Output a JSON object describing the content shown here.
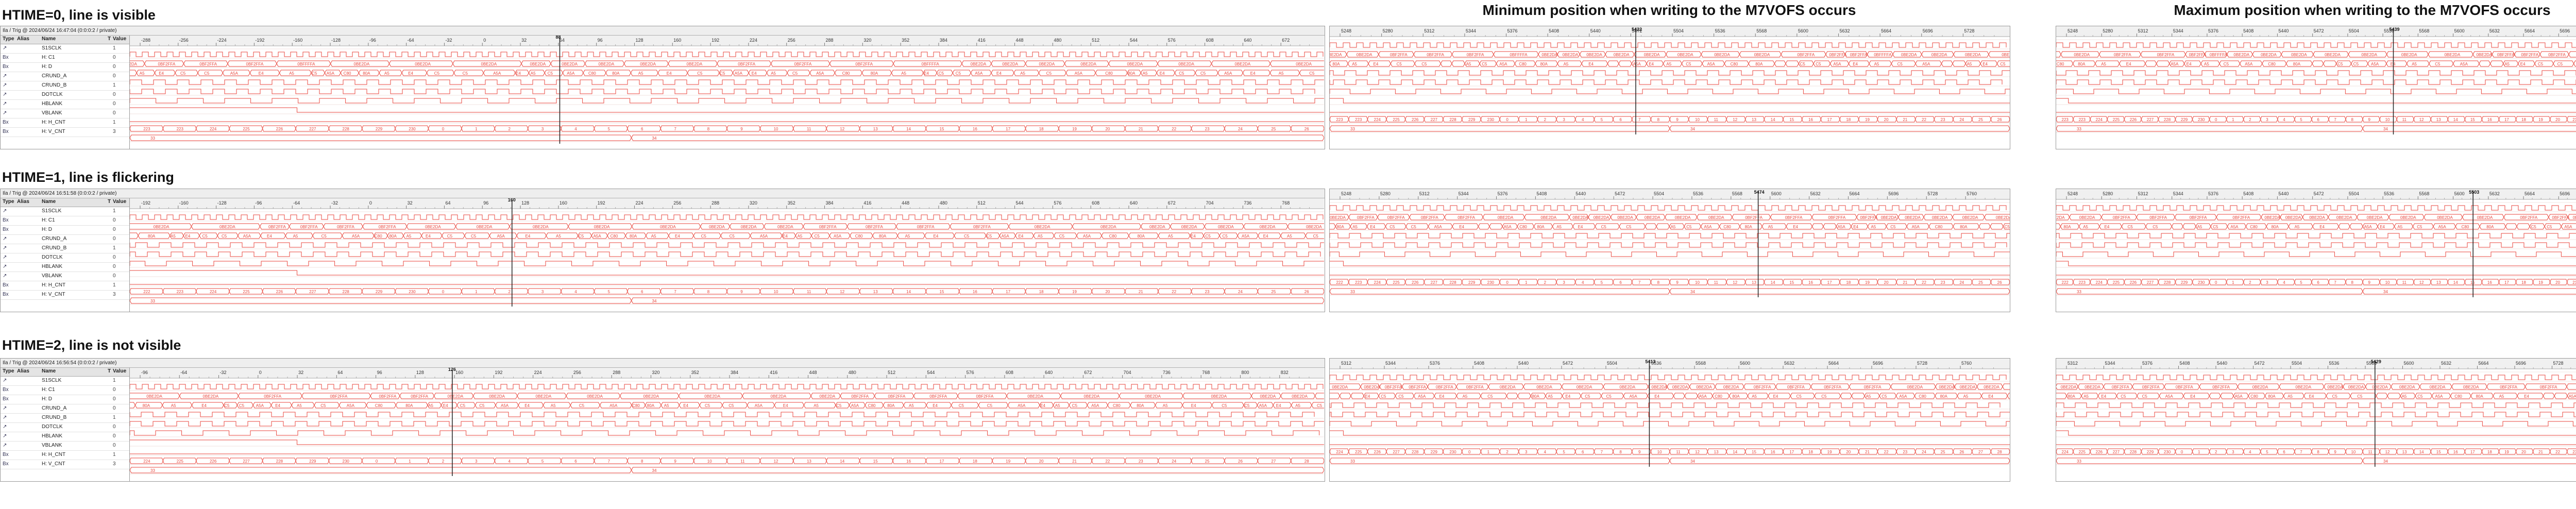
{
  "headings": {
    "row1": "HTIME=0, line is visible",
    "row2": "HTIME=1, line is flickering",
    "row3": "HTIME=2, line is not visible"
  },
  "column_headings": {
    "min": "Minimum position when writing to the M7VOFS occurs",
    "max": "Maximum position when writing to the M7VOFS occurs"
  },
  "trigger_bars": [
    "Ila / Trig @ 2024/06/24 16:47:04 (0:0:0:2 / private)",
    "Ila / Trig @ 2024/06/24 16:51:58 (0:0:0:2 / private)",
    "Ila / Trig @ 2024/06/24 16:56:54 (0:0:0:2 / private)"
  ],
  "list_header": {
    "type": "Type",
    "alias": "Alias",
    "name": "Name",
    "trig": "T",
    "value": "Value"
  },
  "signals": [
    {
      "type": "↗",
      "alias": "",
      "name": "S1SCLK",
      "value": "1"
    },
    {
      "type": "Bx",
      "alias": "",
      "name": "H: C1",
      "value": "0"
    },
    {
      "type": "Bx",
      "alias": "",
      "name": "H: D",
      "value": "0"
    },
    {
      "type": "↗",
      "alias": "",
      "name": "CRUND_A",
      "value": "0"
    },
    {
      "type": "↗",
      "alias": "",
      "name": "CRUND_B",
      "value": "1"
    },
    {
      "type": "↗",
      "alias": "",
      "name": "DOTCLK",
      "value": "0"
    },
    {
      "type": "↗",
      "alias": "",
      "name": "HBLANK",
      "value": "0"
    },
    {
      "type": "↗",
      "alias": "",
      "name": "VBLANK",
      "value": "0"
    },
    {
      "type": "Bx",
      "alias": "",
      "name": "H: H_CNT",
      "value": "1"
    },
    {
      "type": "Bx",
      "alias": "",
      "name": "H: V_CNT",
      "value": "3"
    }
  ],
  "rows": [
    {
      "cursor_label": "88",
      "ruler_main": [
        "-288",
        "-256",
        "-224",
        "-192",
        "-160",
        "-128",
        "-96",
        "-64",
        "-32",
        "0",
        "32",
        "64",
        "96",
        "128",
        "160",
        "192",
        "224",
        "256",
        "288",
        "320",
        "352",
        "384",
        "416",
        "448",
        "480",
        "512",
        "544",
        "576",
        "608",
        "640",
        "672"
      ],
      "ruler_min": [
        "5248",
        "5280",
        "5312",
        "5344",
        "5376",
        "5408",
        "5440",
        "5472",
        "5504",
        "5536",
        "5568",
        "5600",
        "5632",
        "5664",
        "5696",
        "5728"
      ],
      "ruler_max": [
        "5248",
        "5280",
        "5312",
        "5344",
        "5376",
        "5408",
        "5440",
        "5472",
        "5504",
        "5536",
        "5568",
        "5600",
        "5632",
        "5664",
        "5696",
        "5728",
        "5760"
      ],
      "cursor_min": "5422",
      "cursor_max": "5439",
      "bus_labels": [
        "0BE2DA",
        "0BE2DA",
        "0BF2FFA",
        "0BF2FFA",
        "0BF2FFA",
        "0BFFFFA",
        "0BE2DA",
        "0BE2DA",
        "0BE2DA",
        "0BE2DA",
        "0BE2DA",
        "0BE2DA"
      ],
      "d_labels": [
        "C80",
        "80A",
        "A5",
        "E4",
        "C5",
        "C5",
        "A5A",
        "E4",
        "A5",
        "C5",
        "A5A"
      ],
      "hcnt_labels": [
        "223",
        "223",
        "224",
        "225",
        "226",
        "227",
        "228",
        "229",
        "230",
        "0",
        "1",
        "2",
        "3",
        "4",
        "5",
        "6",
        "7",
        "8",
        "9",
        "10",
        "11",
        "12",
        "13",
        "14",
        "15",
        "16",
        "17",
        "18",
        "19",
        "20",
        "21",
        "22",
        "23",
        "24",
        "25",
        "26"
      ],
      "vcnt_labels": [
        "33",
        "34"
      ]
    },
    {
      "cursor_label": "160",
      "ruler_main": [
        "-192",
        "-160",
        "-128",
        "-96",
        "-64",
        "-32",
        "0",
        "32",
        "64",
        "96",
        "128",
        "160",
        "192",
        "224",
        "256",
        "288",
        "320",
        "352",
        "384",
        "416",
        "448",
        "480",
        "512",
        "544",
        "576",
        "608",
        "640",
        "672",
        "704",
        "736",
        "768"
      ],
      "ruler_min": [
        "5248",
        "5280",
        "5312",
        "5344",
        "5376",
        "5408",
        "5440",
        "5472",
        "5504",
        "5536",
        "5568",
        "5600",
        "5632",
        "5664",
        "5696",
        "5728",
        "5760"
      ],
      "ruler_max": [
        "5248",
        "5280",
        "5312",
        "5344",
        "5376",
        "5408",
        "5440",
        "5472",
        "5504",
        "5536",
        "5568",
        "5600",
        "5632",
        "5664",
        "5696",
        "5728",
        "5760"
      ],
      "cursor_min": "5474",
      "cursor_max": "5503",
      "bus_labels": [
        "0BE2DA",
        "0BE2DA",
        "0BF2FFA",
        "0BF2FFA",
        "0BF2FFA",
        "0BF2FFA",
        "0BE2DA",
        "0BE2DA",
        "0BE2DA",
        "0BE2DA",
        "0BE2DA",
        "0BE2DA"
      ],
      "d_labels": [
        "C80",
        "80A",
        "A5",
        "E4",
        "C5",
        "C5",
        "A5A",
        "E4",
        "A5",
        "C5",
        "A5A"
      ],
      "hcnt_labels": [
        "222",
        "223",
        "224",
        "225",
        "226",
        "227",
        "228",
        "229",
        "230",
        "0",
        "1",
        "2",
        "3",
        "4",
        "5",
        "6",
        "7",
        "8",
        "9",
        "10",
        "11",
        "12",
        "13",
        "14",
        "15",
        "16",
        "17",
        "18",
        "19",
        "20",
        "21",
        "22",
        "23",
        "24",
        "25",
        "26"
      ],
      "vcnt_labels": [
        "33",
        "34"
      ]
    },
    {
      "cursor_label": "126",
      "ruler_main": [
        "-96",
        "-64",
        "-32",
        "0",
        "32",
        "64",
        "96",
        "128",
        "160",
        "192",
        "224",
        "256",
        "288",
        "320",
        "352",
        "384",
        "416",
        "448",
        "480",
        "512",
        "544",
        "576",
        "608",
        "640",
        "672",
        "704",
        "736",
        "768",
        "800",
        "832"
      ],
      "ruler_min": [
        "5312",
        "5344",
        "5376",
        "5408",
        "5440",
        "5472",
        "5504",
        "5536",
        "5568",
        "5600",
        "5632",
        "5664",
        "5696",
        "5728",
        "5760"
      ],
      "ruler_max": [
        "5312",
        "5344",
        "5376",
        "5408",
        "5440",
        "5472",
        "5504",
        "5536",
        "5568",
        "5600",
        "5632",
        "5664",
        "5696",
        "5728",
        "5760",
        "5792"
      ],
      "cursor_min": "5413",
      "cursor_max": "5429",
      "bus_labels": [
        "0BE2DA",
        "0BE2DA",
        "0BF2FFA",
        "0BF2FFA",
        "0BF2FFA",
        "0BF2FFA",
        "0BE2DA",
        "0BE2DA",
        "0BE2DA",
        "0BE2DA",
        "0BE2DA",
        "0BE2DA"
      ],
      "d_labels": [
        "C80",
        "80A",
        "A5",
        "E4",
        "C5",
        "C5",
        "A5A",
        "E4",
        "A5",
        "C5",
        "A5A"
      ],
      "hcnt_labels": [
        "224",
        "225",
        "226",
        "227",
        "228",
        "229",
        "230",
        "0",
        "1",
        "2",
        "3",
        "4",
        "5",
        "6",
        "7",
        "8",
        "9",
        "10",
        "11",
        "12",
        "13",
        "14",
        "15",
        "16",
        "17",
        "18",
        "19",
        "20",
        "21",
        "22",
        "23",
        "24",
        "25",
        "26",
        "27",
        "28"
      ],
      "vcnt_labels": [
        "33",
        "34"
      ]
    }
  ],
  "colors": {
    "wave": "#e8463c",
    "wave_light": "#f29a94",
    "cursor": "#222222",
    "grid": "#f4d0cd"
  }
}
